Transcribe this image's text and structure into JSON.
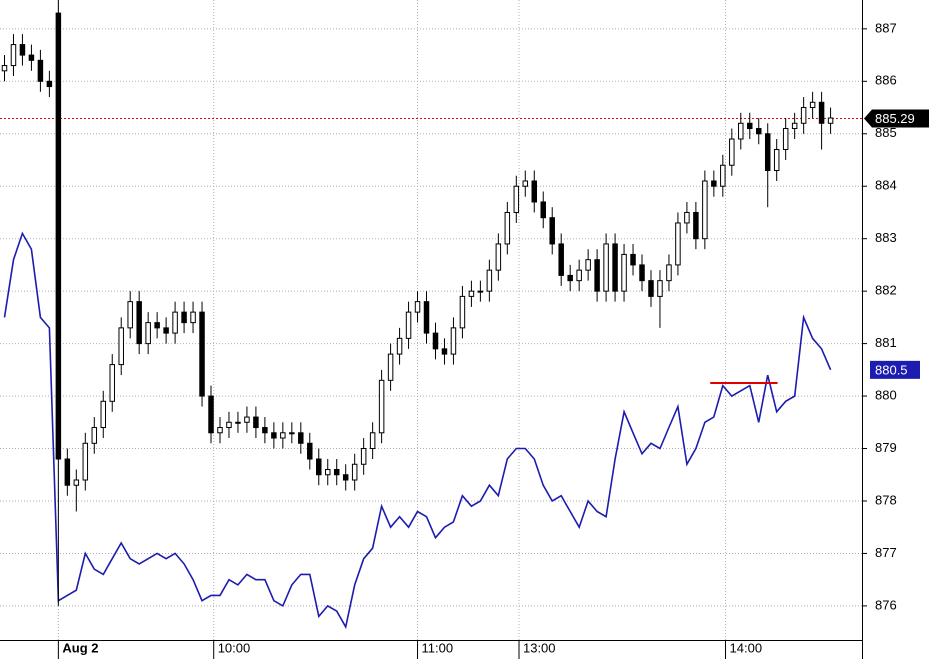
{
  "chart_data": {
    "type": "candlestick",
    "x": [
      0,
      1,
      2,
      3,
      4,
      5,
      6,
      7,
      8,
      9,
      10,
      11,
      12,
      13,
      14,
      15,
      16,
      17,
      18,
      19,
      20,
      21,
      22,
      23,
      24,
      25,
      26,
      27,
      28,
      29,
      30,
      31,
      32,
      33,
      34,
      35,
      36,
      37,
      38,
      39,
      40,
      41,
      42,
      43,
      44,
      45,
      46,
      47,
      48,
      49,
      50,
      51,
      52,
      53,
      54,
      55,
      56,
      57,
      58,
      59,
      60,
      61,
      62,
      63,
      64,
      65,
      66,
      67,
      68,
      69,
      70,
      71,
      72,
      73,
      74,
      75,
      76,
      77,
      78,
      79,
      80,
      81,
      82,
      83,
      84,
      85,
      86,
      87,
      88,
      89,
      90,
      91,
      92
    ],
    "open": [
      886.2,
      886.3,
      886.7,
      886.5,
      886.4,
      886.0,
      887.3,
      878.8,
      878.3,
      878.4,
      879.1,
      879.4,
      879.9,
      880.6,
      881.3,
      881.8,
      881.0,
      881.4,
      881.3,
      881.2,
      881.6,
      881.4,
      881.6,
      880.0,
      879.3,
      879.4,
      879.5,
      879.5,
      879.6,
      879.4,
      879.3,
      879.2,
      879.3,
      879.3,
      879.1,
      878.8,
      878.5,
      878.6,
      878.5,
      878.4,
      878.7,
      879.0,
      879.3,
      880.3,
      880.8,
      881.1,
      881.6,
      881.8,
      881.2,
      880.9,
      880.8,
      881.3,
      881.9,
      882.0,
      882.0,
      882.4,
      882.9,
      883.5,
      884.0,
      884.1,
      883.7,
      883.4,
      882.9,
      882.3,
      882.2,
      882.4,
      882.6,
      882.0,
      882.9,
      882.0,
      882.7,
      882.5,
      882.2,
      881.9,
      882.2,
      882.5,
      883.3,
      883.5,
      883.0,
      884.1,
      884.0,
      884.4,
      884.9,
      885.2,
      885.1,
      885.0,
      884.3,
      884.7,
      885.1,
      885.2,
      885.5,
      885.6,
      885.2
    ],
    "high": [
      886.5,
      886.9,
      886.9,
      886.7,
      886.6,
      886.2,
      887.6,
      879.0,
      878.6,
      879.3,
      879.6,
      880.1,
      880.8,
      881.5,
      882.0,
      882.0,
      881.6,
      881.6,
      881.5,
      881.8,
      881.8,
      881.8,
      881.8,
      880.2,
      879.6,
      879.7,
      879.7,
      879.8,
      879.8,
      879.6,
      879.5,
      879.5,
      879.5,
      879.5,
      879.3,
      879.0,
      878.8,
      878.8,
      878.7,
      878.9,
      879.2,
      879.5,
      880.5,
      881.0,
      881.3,
      881.8,
      882.0,
      882.0,
      881.4,
      881.1,
      881.5,
      882.1,
      882.2,
      882.2,
      882.6,
      883.1,
      883.7,
      884.2,
      884.3,
      884.3,
      883.9,
      883.6,
      883.1,
      882.5,
      882.6,
      882.8,
      882.8,
      883.1,
      883.1,
      882.9,
      882.9,
      882.7,
      882.4,
      882.4,
      882.7,
      883.5,
      883.7,
      883.7,
      884.3,
      884.3,
      884.6,
      885.1,
      885.4,
      885.4,
      885.3,
      885.2,
      884.9,
      885.3,
      885.4,
      885.7,
      885.8,
      885.8,
      885.5
    ],
    "low": [
      886.0,
      886.1,
      886.3,
      886.2,
      885.8,
      885.7,
      876.0,
      878.1,
      877.8,
      878.2,
      878.9,
      879.2,
      879.7,
      880.4,
      881.1,
      880.8,
      880.8,
      881.1,
      881.0,
      881.0,
      881.2,
      881.2,
      879.8,
      879.1,
      879.1,
      879.2,
      879.3,
      879.3,
      879.2,
      879.1,
      879.0,
      879.0,
      879.1,
      878.9,
      878.6,
      878.3,
      878.3,
      878.3,
      878.2,
      878.2,
      878.5,
      878.8,
      879.1,
      880.1,
      880.6,
      880.9,
      881.4,
      881.0,
      880.7,
      880.6,
      880.6,
      881.1,
      881.7,
      881.8,
      881.8,
      882.2,
      882.7,
      883.3,
      883.8,
      883.5,
      883.2,
      882.7,
      882.1,
      882.0,
      882.0,
      882.2,
      881.8,
      881.8,
      881.8,
      881.8,
      882.3,
      882.0,
      881.7,
      881.3,
      882.0,
      882.3,
      883.1,
      882.8,
      882.8,
      883.8,
      883.8,
      884.2,
      884.7,
      884.9,
      884.8,
      883.6,
      884.1,
      884.5,
      884.9,
      885.0,
      885.3,
      884.7,
      885.0
    ],
    "close": [
      886.3,
      886.7,
      886.5,
      886.4,
      886.0,
      885.9,
      878.8,
      878.3,
      878.4,
      879.1,
      879.4,
      879.9,
      880.6,
      881.3,
      881.8,
      881.0,
      881.4,
      881.3,
      881.2,
      881.6,
      881.4,
      881.6,
      880.0,
      879.3,
      879.4,
      879.5,
      879.5,
      879.6,
      879.4,
      879.3,
      879.2,
      879.3,
      879.3,
      879.1,
      878.8,
      878.5,
      878.6,
      878.5,
      878.4,
      878.7,
      879.0,
      879.3,
      880.3,
      880.8,
      881.1,
      881.6,
      881.8,
      881.2,
      880.9,
      880.8,
      881.3,
      881.9,
      882.0,
      882.0,
      882.4,
      882.9,
      883.5,
      884.0,
      884.1,
      883.7,
      883.4,
      882.9,
      882.3,
      882.2,
      882.4,
      882.6,
      882.0,
      882.9,
      882.0,
      882.7,
      882.5,
      882.2,
      881.9,
      882.2,
      882.5,
      883.3,
      883.5,
      883.0,
      884.1,
      884.0,
      884.4,
      884.9,
      885.2,
      885.1,
      885.0,
      884.3,
      884.7,
      885.1,
      885.2,
      885.5,
      885.6,
      885.2,
      885.3
    ],
    "color": "#000000",
    "line": {
      "color": "#1c1cb0",
      "values": [
        881.5,
        882.6,
        883.1,
        882.8,
        881.5,
        881.3,
        876.1,
        876.2,
        876.3,
        877.0,
        876.7,
        876.6,
        876.9,
        877.2,
        876.9,
        876.8,
        876.9,
        877.0,
        876.9,
        877.0,
        876.8,
        876.5,
        876.1,
        876.2,
        876.2,
        876.5,
        876.4,
        876.6,
        876.5,
        876.5,
        876.1,
        876.0,
        876.4,
        876.6,
        876.6,
        875.8,
        876.0,
        875.9,
        875.6,
        876.4,
        876.9,
        877.1,
        877.9,
        877.5,
        877.7,
        877.5,
        877.8,
        877.7,
        877.3,
        877.5,
        877.6,
        878.1,
        877.9,
        878.0,
        878.3,
        878.1,
        878.8,
        879.0,
        879.0,
        878.8,
        878.3,
        878.0,
        878.1,
        877.8,
        877.5,
        878.0,
        877.8,
        877.7,
        878.8,
        879.7,
        879.3,
        878.9,
        879.1,
        879.0,
        879.4,
        879.8,
        878.7,
        879.0,
        879.5,
        879.6,
        880.2,
        880.0,
        880.1,
        880.2,
        879.5,
        880.4,
        879.7,
        879.9,
        880.0,
        881.5,
        881.1,
        880.9,
        880.5
      ]
    },
    "price_line": {
      "value": 885.29,
      "color": "#d01010"
    },
    "level": {
      "value": 880.25,
      "x": [
        78.6,
        86.1
      ],
      "color": "#e00000"
    },
    "xlim": [
      -0.5,
      95.5
    ],
    "xticks": [
      {
        "value": 6,
        "label": "Aug 2"
      },
      {
        "value": 23.3,
        "label": "10:00"
      },
      {
        "value": 46,
        "label": "11:00"
      },
      {
        "value": 57.3,
        "label": "13:00"
      },
      {
        "value": 80.3,
        "label": "14:00"
      }
    ],
    "ylim": [
      875.35,
      887.55
    ],
    "yticks": [
      876,
      877,
      878,
      879,
      880,
      881,
      882,
      883,
      884,
      885,
      886,
      887
    ],
    "grid": true
  }
}
